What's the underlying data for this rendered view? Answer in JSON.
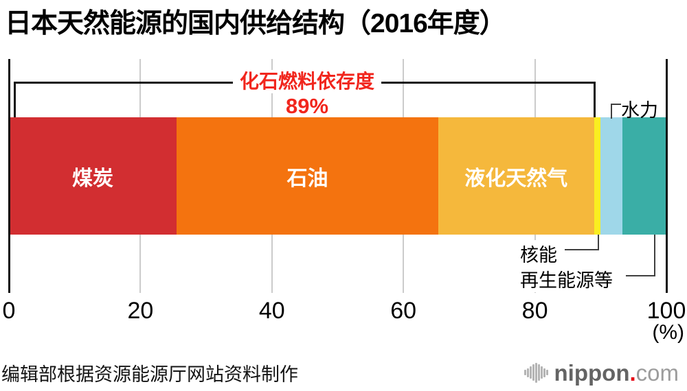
{
  "title": "日本天然能源的国内供给结构（2016年度）",
  "chart_data": {
    "type": "bar",
    "variant": "horizontal-stacked-100pct",
    "title": "日本天然能源的国内供给结构（2016年度）",
    "xlim": [
      0,
      100
    ],
    "xticks": [
      0,
      20,
      40,
      60,
      80,
      100
    ],
    "x_unit": "(%)",
    "grid": true,
    "series": [
      {
        "name": "煤炭",
        "value": 25.5,
        "color": "#d22e31",
        "label_inside": true
      },
      {
        "name": "石油",
        "value": 39.8,
        "color": "#f4730f",
        "label_inside": true
      },
      {
        "name": "液化天然气",
        "value": 23.7,
        "color": "#f5b83c",
        "label_inside": true
      },
      {
        "name": "核能",
        "value": 1.0,
        "color": "#faee21",
        "label_inside": false
      },
      {
        "name": "水力",
        "value": 3.3,
        "color": "#9fd7e9",
        "label_inside": false
      },
      {
        "name": "再生能源等",
        "value": 6.7,
        "color": "#3aaea6",
        "label_inside": false
      }
    ],
    "annotation": {
      "text": "化石燃料依存度",
      "value": "89%",
      "color": "#f1261d",
      "span_pct": [
        0,
        89
      ]
    }
  },
  "footer": {
    "source": "编辑部根据资源能源厅网站资料制作",
    "logo": {
      "name": "nippon.com",
      "bold": "nippon",
      "dot": ".",
      "light": "com",
      "dot_color": "#e60012"
    }
  }
}
